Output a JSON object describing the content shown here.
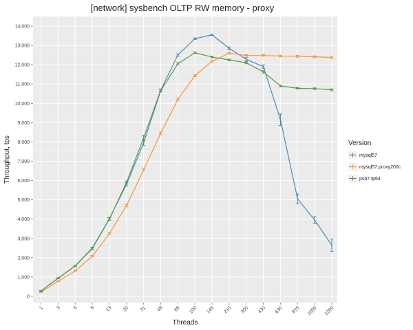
{
  "chart_data": {
    "type": "line",
    "title": "[network] sysbench OLTP RW memory - proxy",
    "xlabel": "Threads",
    "ylabel": "Throughput, tps",
    "categories": [
      "1",
      "3",
      "5",
      "8",
      "13",
      "20",
      "31",
      "48",
      "68",
      "100",
      "145",
      "210",
      "300",
      "430",
      "630",
      "870",
      "1000",
      "1200"
    ],
    "y_ticks": [
      "0",
      "1,000",
      "2,000",
      "3,000",
      "4,000",
      "5,000",
      "6,000",
      "7,000",
      "8,000",
      "9,000",
      "10,000",
      "11,000",
      "12,000",
      "13,000",
      "14,000"
    ],
    "ylim": [
      0,
      14000
    ],
    "grid": true,
    "legend": {
      "title": "Version",
      "position": "right"
    },
    "series": [
      {
        "name": "mysql57",
        "color": "#4a8cb8",
        "values": [
          280,
          930,
          1570,
          2470,
          4000,
          5900,
          8200,
          10680,
          12500,
          13350,
          13550,
          12850,
          12280,
          11900,
          9150,
          5050,
          3950,
          2650
        ],
        "err": [
          20,
          20,
          30,
          40,
          60,
          80,
          140,
          60,
          60,
          40,
          30,
          70,
          90,
          90,
          300,
          250,
          180,
          320
        ]
      },
      {
        "name": "mysql57.proxy200c",
        "color": "#f79638",
        "values": [
          220,
          780,
          1310,
          2080,
          3250,
          4700,
          6550,
          8450,
          10200,
          11430,
          12180,
          12600,
          12480,
          12480,
          12450,
          12440,
          12410,
          12380
        ],
        "err": [
          20,
          20,
          30,
          40,
          50,
          60,
          60,
          60,
          60,
          50,
          50,
          50,
          40,
          40,
          40,
          50,
          50,
          60
        ]
      },
      {
        "name": "ps57.tp64",
        "color": "#5a9a46",
        "values": [
          270,
          940,
          1580,
          2500,
          4020,
          5800,
          7950,
          10650,
          12050,
          12620,
          12400,
          12250,
          12100,
          11630,
          10900,
          10780,
          10760,
          10700
        ],
        "err": [
          20,
          20,
          30,
          50,
          70,
          90,
          140,
          60,
          60,
          40,
          40,
          40,
          50,
          60,
          40,
          40,
          40,
          50
        ]
      }
    ]
  }
}
